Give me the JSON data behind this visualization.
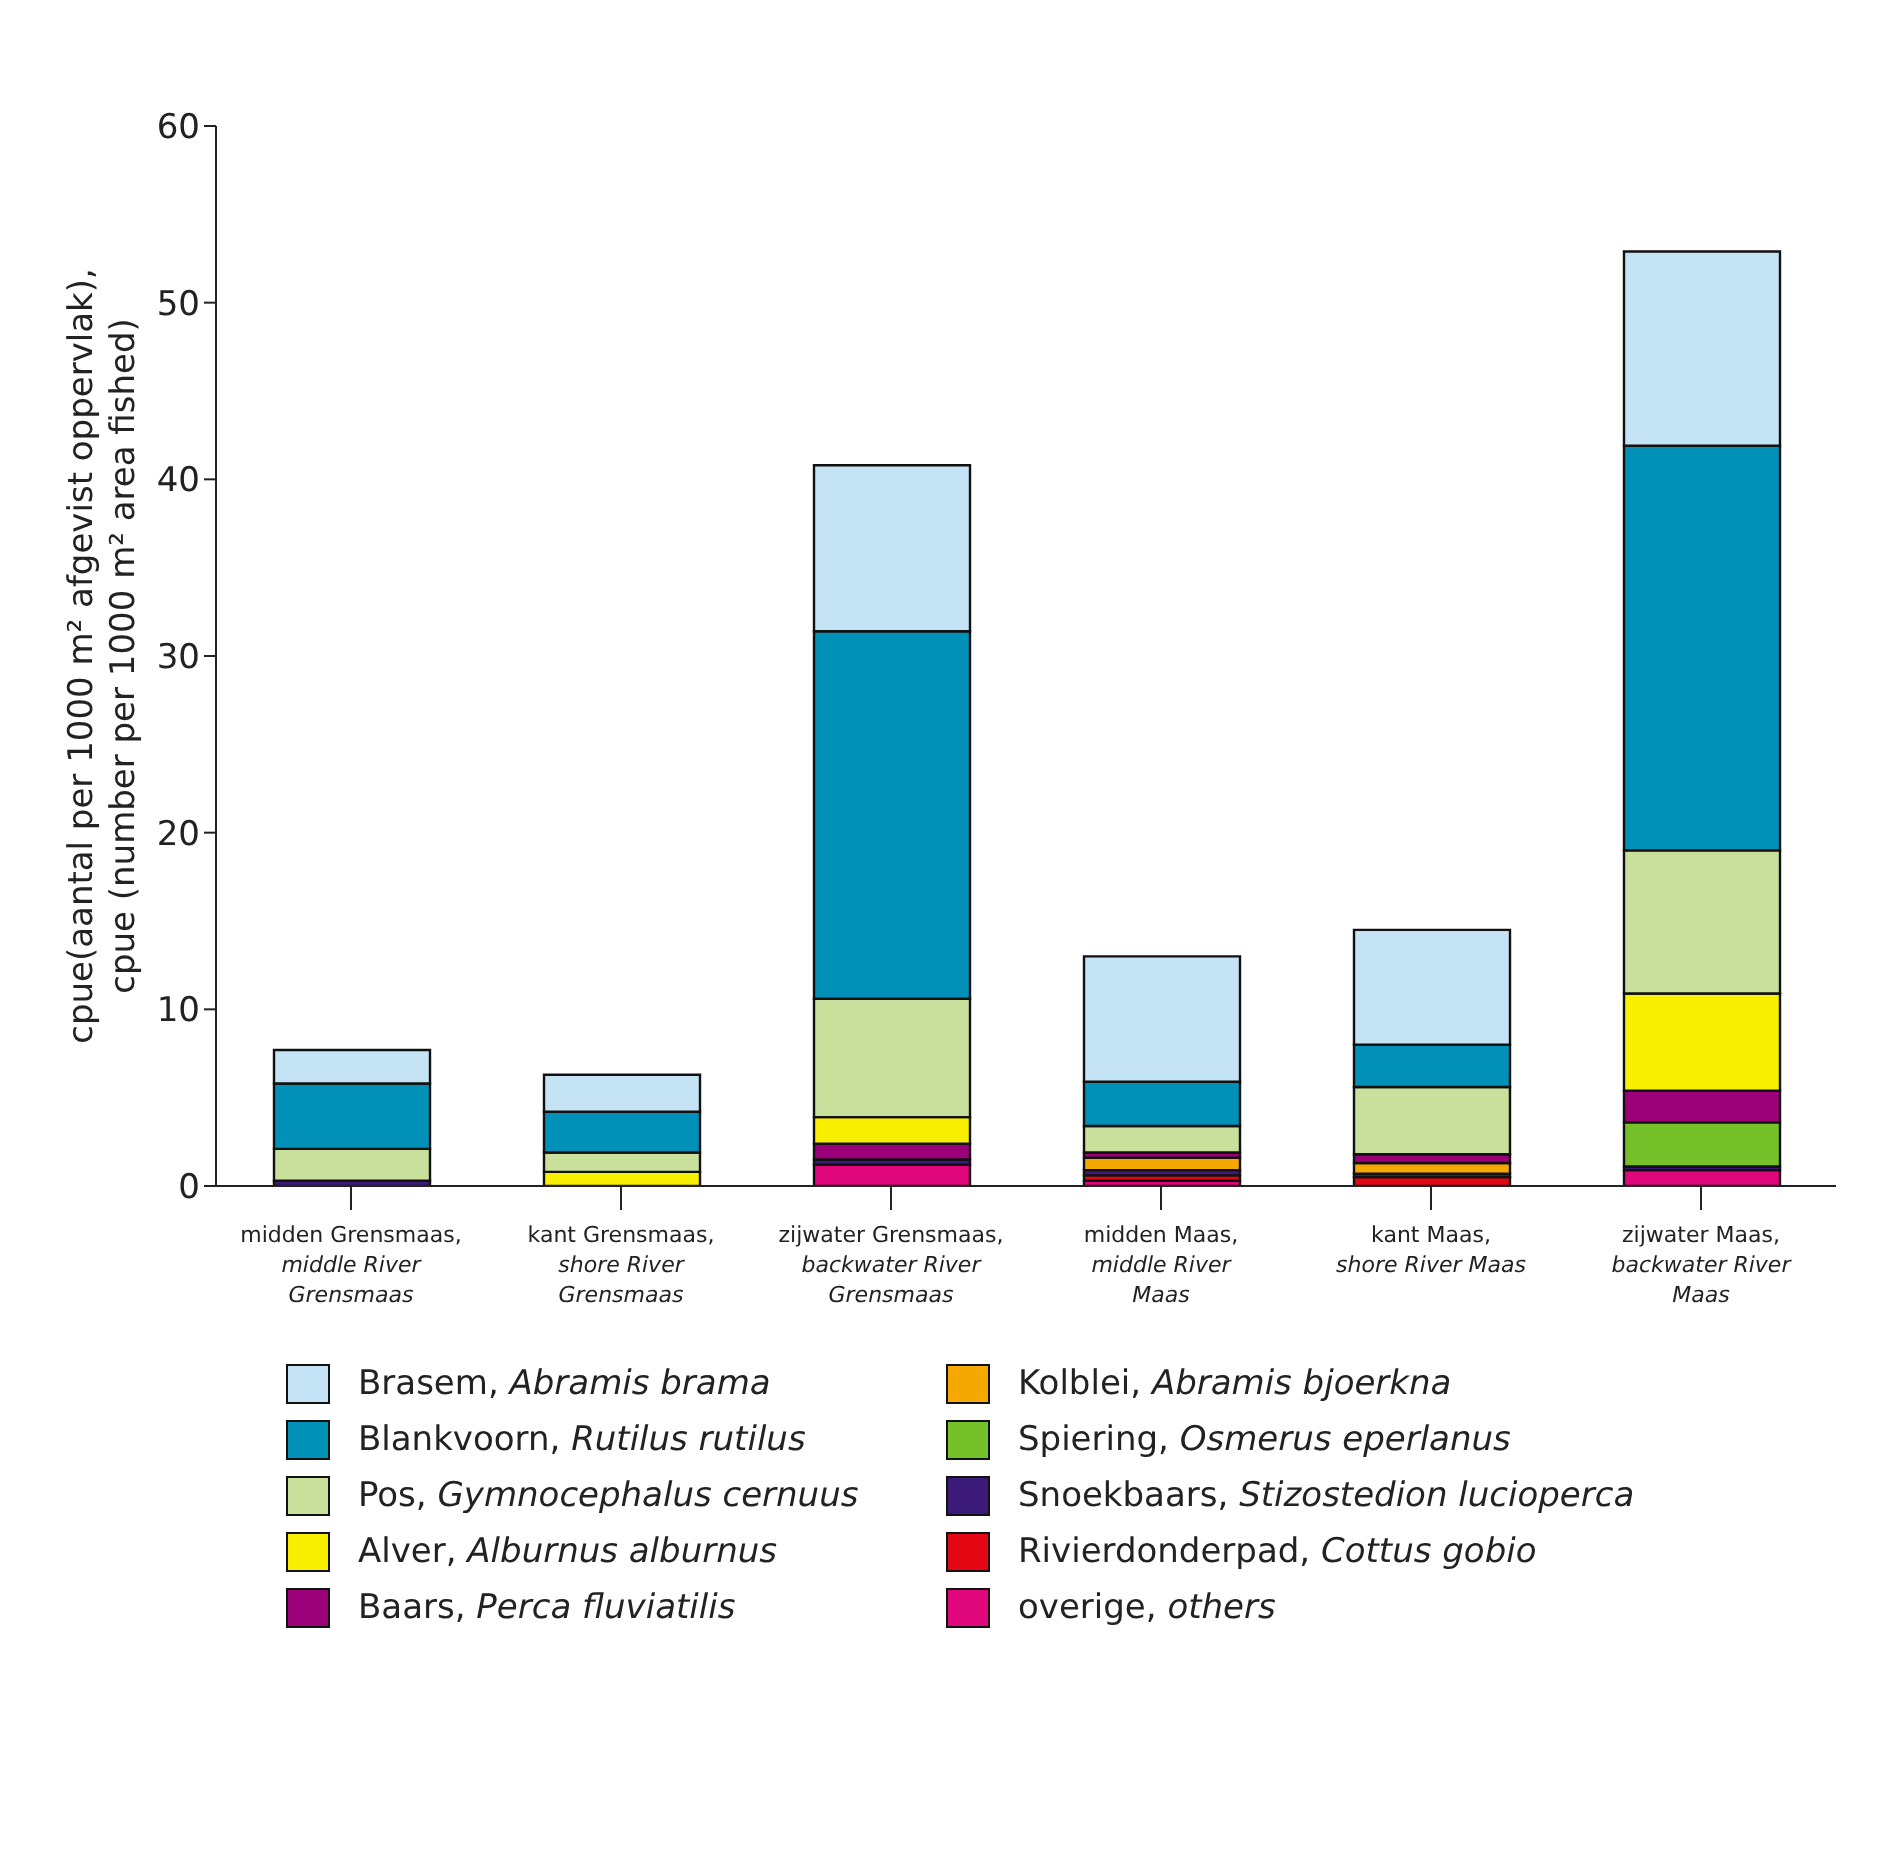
{
  "chart_data": {
    "type": "bar",
    "stacked": true,
    "ylabel": "cpue(aantal per 1000 m² afgevist oppervlak), cpue (number per 1000 m² area fished)",
    "categories": [
      "midden Grensmaas, middle River Grensmaas",
      "kant Grensmaas, shore River Grensmaas",
      "zijwater Grensmaas, backwater River Grensmaas",
      "midden Maas, middle River Maas",
      "kant Maas, shore River Maas",
      "zijwater Maas, backwater River Maas"
    ],
    "ylim": [
      0,
      60
    ],
    "yticks": [
      0,
      10,
      20,
      30,
      40,
      50,
      60
    ],
    "legend": "bottom",
    "series": [
      {
        "name": "overige, others",
        "color": "#e0077d",
        "values": [
          0,
          0,
          1.2,
          0.3,
          0,
          0.9
        ]
      },
      {
        "name": "Rivierdonderpad, Cottus gobio",
        "color": "#e30613",
        "values": [
          0,
          0,
          0,
          0.3,
          0.5,
          0
        ]
      },
      {
        "name": "Snoekbaars, Stizostedion lucioperca",
        "color": "#3c1a7a",
        "values": [
          0.3,
          0,
          0.3,
          0.3,
          0.2,
          0.2
        ]
      },
      {
        "name": "Spiering, Osmerus eperlanus",
        "color": "#76c12a",
        "values": [
          0,
          0,
          0,
          0,
          0,
          2.5
        ]
      },
      {
        "name": "Kolblei, Abramis bjoerkna",
        "color": "#f5a800",
        "values": [
          0,
          0,
          0,
          0.7,
          0.6,
          0
        ]
      },
      {
        "name": "Baars, Perca fluviatilis",
        "color": "#9b0078",
        "values": [
          0,
          0,
          0.9,
          0.3,
          0.5,
          1.8
        ]
      },
      {
        "name": "Alver, Alburnus alburnus",
        "color": "#f8f000",
        "values": [
          0,
          0.8,
          1.5,
          0,
          0,
          5.5
        ]
      },
      {
        "name": "Pos, Gymnocephalus cernuus",
        "color": "#c8e09c",
        "values": [
          1.8,
          1.1,
          6.7,
          1.5,
          3.8,
          8.1
        ]
      },
      {
        "name": "Blankvoorn, Rutilus rutilus",
        "color": "#0090b8",
        "values": [
          3.7,
          2.3,
          20.8,
          2.5,
          2.4,
          22.9
        ]
      },
      {
        "name": "Brasem, Abramis brama",
        "color": "#c4e3f5",
        "values": [
          1.9,
          2.1,
          9.4,
          7.1,
          6.5,
          11.0
        ]
      }
    ]
  }
}
